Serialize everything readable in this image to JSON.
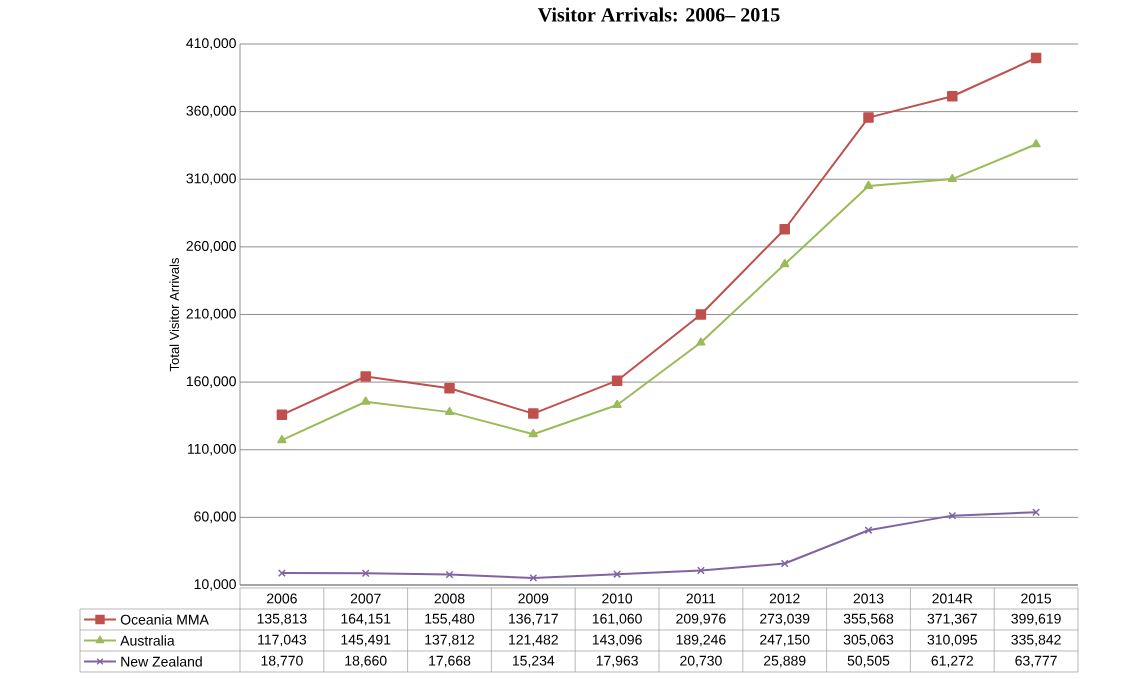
{
  "chart_data": {
    "type": "line",
    "title": "Visitor Arrivals: 2006– 2015",
    "ylabel": "Total Visitor Arrivals",
    "categories": [
      "2006",
      "2007",
      "2008",
      "2009",
      "2010",
      "2011",
      "2012",
      "2013",
      "2014R",
      "2015"
    ],
    "series": [
      {
        "name": "Oceania MMA",
        "color": "#c0504d",
        "marker": "square",
        "values": [
          135813,
          164151,
          155480,
          136717,
          161060,
          209976,
          273039,
          355568,
          371367,
          399619
        ],
        "value_labels": [
          "135,813",
          "164,151",
          "155,480",
          "136,717",
          "161,060",
          "209,976",
          "273,039",
          "355,568",
          "371,367",
          "399,619"
        ]
      },
      {
        "name": "Australia",
        "color": "#9bbb59",
        "marker": "triangle",
        "values": [
          117043,
          145491,
          137812,
          121482,
          143096,
          189246,
          247150,
          305063,
          310095,
          335842
        ],
        "value_labels": [
          "117,043",
          "145,491",
          "137,812",
          "121,482",
          "143,096",
          "189,246",
          "247,150",
          "305,063",
          "310,095",
          "335,842"
        ]
      },
      {
        "name": "New Zealand",
        "color": "#8064a2",
        "marker": "cross",
        "values": [
          18770,
          18660,
          17668,
          15234,
          17963,
          20730,
          25889,
          50505,
          61272,
          63777
        ],
        "value_labels": [
          "18,770",
          "18,660",
          "17,668",
          "15,234",
          "17,963",
          "20,730",
          "25,889",
          "50,505",
          "61,272",
          "63,777"
        ]
      }
    ],
    "ylim": [
      10000,
      410000
    ],
    "yticks": [
      {
        "value": 10000,
        "label": "10,000"
      },
      {
        "value": 60000,
        "label": "60,000"
      },
      {
        "value": 110000,
        "label": "110,000"
      },
      {
        "value": 160000,
        "label": "160,000"
      },
      {
        "value": 210000,
        "label": "210,000"
      },
      {
        "value": 260000,
        "label": "260,000"
      },
      {
        "value": 310000,
        "label": "310,000"
      },
      {
        "value": 360000,
        "label": "360,000"
      },
      {
        "value": 410000,
        "label": "410,000"
      }
    ],
    "grid": "y",
    "legend": "bottom",
    "line_style": "solid"
  }
}
